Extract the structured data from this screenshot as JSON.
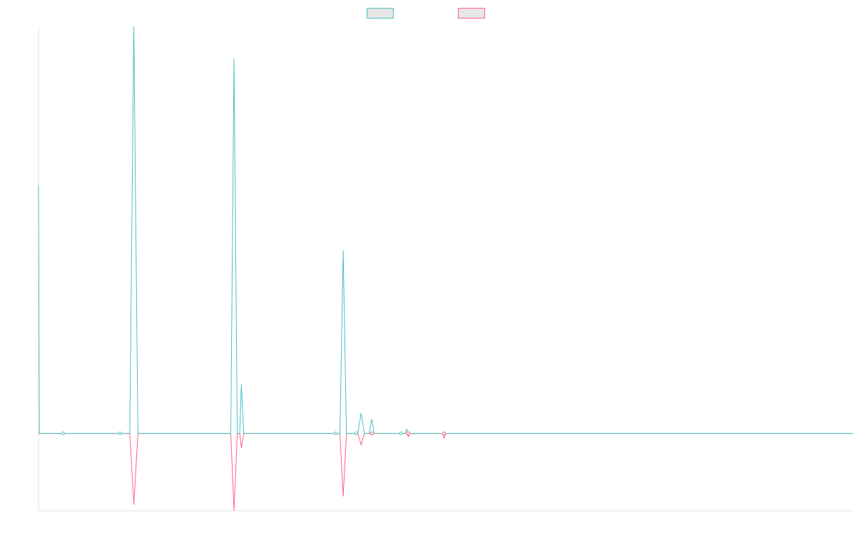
{
  "chart_data": {
    "type": "line",
    "title": "",
    "xlabel": "",
    "ylabel": "",
    "ylim": [
      -0.19,
      1.0
    ],
    "grid": false,
    "legend_position": "top",
    "series": [
      {
        "name": "",
        "color": "#4bc0c0",
        "fill": "#e6e6e6",
        "points": [
          [
            0.0,
            0.61
          ],
          [
            1.0,
            0.0
          ],
          [
            30.0,
            0.0
          ],
          [
            105.0,
            0.0
          ],
          [
            112.0,
            0.0
          ],
          [
            117.0,
            1.0
          ],
          [
            122.0,
            0.0
          ],
          [
            230.0,
            0.0
          ],
          [
            236.0,
            0.0
          ],
          [
            240.0,
            0.92
          ],
          [
            244.0,
            0.0
          ],
          [
            247.0,
            0.0
          ],
          [
            249.0,
            0.12
          ],
          [
            252.0,
            0.0
          ],
          [
            370.0,
            0.0
          ],
          [
            374.0,
            0.45
          ],
          [
            378.0,
            0.0
          ],
          [
            392.0,
            0.0
          ],
          [
            396.0,
            0.05
          ],
          [
            400.0,
            0.0
          ],
          [
            406.0,
            0.0
          ],
          [
            409.0,
            0.035
          ],
          [
            412.0,
            0.0
          ],
          [
            450.0,
            0.0
          ],
          [
            452.0,
            0.01
          ],
          [
            454.0,
            0.0
          ],
          [
            900.0,
            0.0
          ],
          [
            1000.0,
            0.0
          ]
        ]
      },
      {
        "name": "",
        "color": "#ff6384",
        "fill": "#e6e6e6",
        "points": [
          [
            0.0,
            0.0
          ],
          [
            112.0,
            0.0
          ],
          [
            117.0,
            -0.175
          ],
          [
            122.0,
            0.0
          ],
          [
            236.0,
            0.0
          ],
          [
            240.0,
            -0.19
          ],
          [
            244.0,
            0.0
          ],
          [
            247.0,
            0.0
          ],
          [
            249.0,
            -0.035
          ],
          [
            252.0,
            0.0
          ],
          [
            370.0,
            0.0
          ],
          [
            374.0,
            -0.155
          ],
          [
            378.0,
            0.0
          ],
          [
            392.0,
            0.0
          ],
          [
            396.0,
            -0.028
          ],
          [
            400.0,
            0.0
          ],
          [
            406.0,
            0.0
          ],
          [
            409.0,
            -0.004
          ],
          [
            412.0,
            0.0
          ],
          [
            452.0,
            0.0
          ],
          [
            454.0,
            -0.008
          ],
          [
            456.0,
            0.0
          ],
          [
            496.0,
            0.0
          ],
          [
            498.0,
            -0.012
          ],
          [
            500.0,
            0.0
          ],
          [
            1000.0,
            0.0
          ]
        ]
      }
    ],
    "markers": [
      {
        "series": 0,
        "x": 30.0,
        "y": 0.0,
        "color": "#4bc0c0"
      },
      {
        "series": 0,
        "x": 100.0,
        "y": 0.0,
        "color": "#4bc0c0"
      },
      {
        "series": 0,
        "x": 365.0,
        "y": 0.0,
        "color": "#4bc0c0"
      },
      {
        "series": 0,
        "x": 390.0,
        "y": 0.0,
        "color": "#4bc0c0"
      },
      {
        "series": 1,
        "x": 409.0,
        "y": 0.0,
        "color": "#ff6384"
      },
      {
        "series": 0,
        "x": 445.0,
        "y": 0.0,
        "color": "#4bc0c0"
      },
      {
        "series": 1,
        "x": 454.0,
        "y": 0.0,
        "color": "#ff6384"
      },
      {
        "series": 1,
        "x": 498.0,
        "y": 0.0,
        "color": "#ff6384"
      }
    ]
  }
}
